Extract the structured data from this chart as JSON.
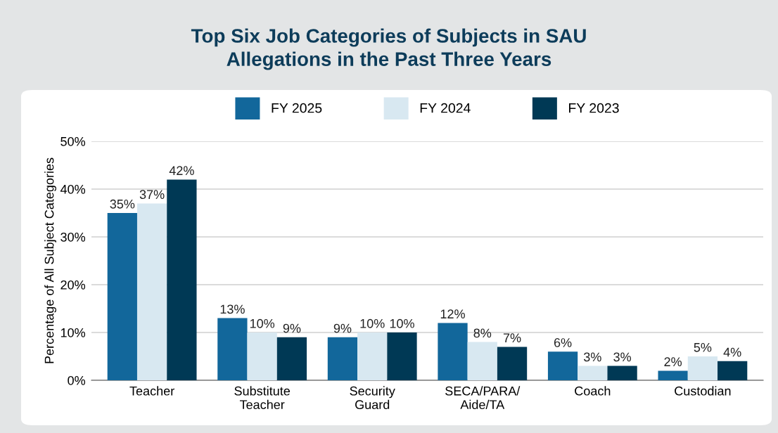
{
  "chart_data": {
    "type": "bar",
    "title": "Top Six Job Categories of Subjects in SAU\nAllegations in the Past Three Years",
    "ylabel": "Percentage of All Subject Categories",
    "categories": [
      "Teacher",
      "Substitute\nTeacher",
      "Security\nGuard",
      "SECA/PARA/\nAide/TA",
      "Coach",
      "Custodian"
    ],
    "series": [
      {
        "name": "FY 2025",
        "color": "#12679b",
        "values": [
          35,
          13,
          9,
          12,
          6,
          2
        ],
        "value_labels": [
          "35%",
          "13%",
          "9%",
          "12%",
          "6%",
          "2%"
        ]
      },
      {
        "name": "FY 2024",
        "color": "#d8e8f1",
        "values": [
          37,
          10,
          10,
          8,
          3,
          5
        ],
        "value_labels": [
          "37%",
          "10%",
          "10%",
          "8%",
          "3%",
          "5%"
        ]
      },
      {
        "name": "FY 2023",
        "color": "#003955",
        "values": [
          42,
          9,
          10,
          7,
          3,
          4
        ],
        "value_labels": [
          "42%",
          "9%",
          "10%",
          "7%",
          "3%",
          "4%"
        ]
      }
    ],
    "ylim": [
      0,
      50
    ],
    "yticks": [
      {
        "value": 0,
        "label": "0%"
      },
      {
        "value": 10,
        "label": "10%"
      },
      {
        "value": 20,
        "label": "20%"
      },
      {
        "value": 30,
        "label": "30%"
      },
      {
        "value": 40,
        "label": "40%"
      },
      {
        "value": 50,
        "label": "50%"
      }
    ],
    "grid": "y",
    "legend": "top"
  }
}
